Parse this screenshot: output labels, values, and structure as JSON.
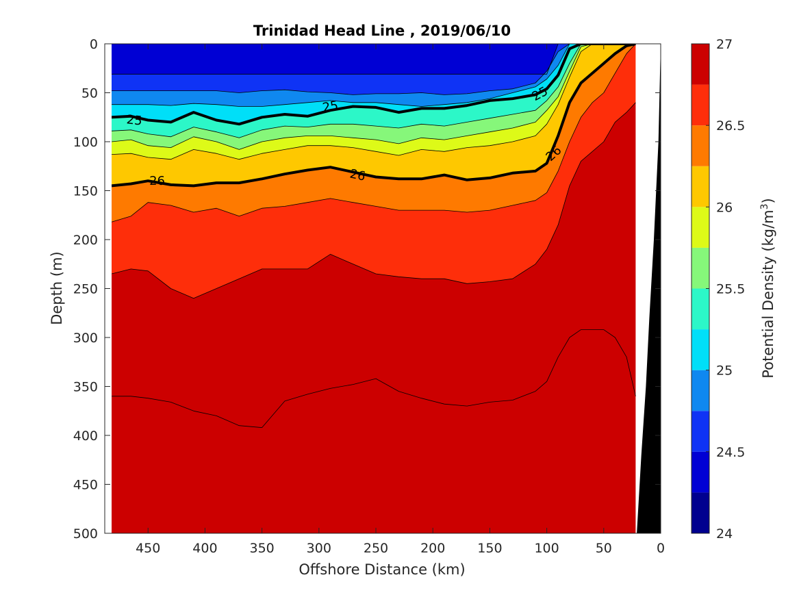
{
  "chart_data": {
    "type": "heatmap",
    "subtype": "filled-contour-section",
    "title": "Trinidad Head Line , 2019/06/10",
    "xlabel": "Offshore Distance (km)",
    "ylabel": "Depth (m)",
    "x_reversed": true,
    "y_reversed": true,
    "xlim": [
      0,
      488
    ],
    "ylim": [
      0,
      500
    ],
    "xticks": [
      450,
      400,
      350,
      300,
      250,
      200,
      150,
      100,
      50,
      0
    ],
    "yticks": [
      0,
      50,
      100,
      150,
      200,
      250,
      300,
      350,
      400,
      450,
      500
    ],
    "colorbar": {
      "label": "Potential Density (kg/m",
      "label_sup": "3",
      "label_close": ")",
      "range": [
        24,
        27
      ],
      "ticks": [
        24,
        24.5,
        25,
        25.5,
        26,
        26.5,
        27
      ],
      "levels": [
        24,
        24.25,
        24.5,
        24.75,
        25,
        25.25,
        25.5,
        25.75,
        26,
        26.25,
        26.5,
        26.75,
        27
      ],
      "colors": [
        "#00008F",
        "#0000D4",
        "#0F33F5",
        "#0F88F0",
        "#00DFF8",
        "#2CF7C8",
        "#86F77A",
        "#DDFA18",
        "#FEC800",
        "#FE7A00",
        "#FE2E0A",
        "#CC0000"
      ]
    },
    "data_region_x_max": 482,
    "bottom_color": "#000000",
    "bathymetry": [
      [
        0,
        0
      ],
      [
        2,
        100
      ],
      [
        6,
        200
      ],
      [
        10,
        280
      ],
      [
        13,
        350
      ],
      [
        17,
        420
      ],
      [
        21,
        500
      ]
    ],
    "isolines_km": [
      482,
      465,
      450,
      430,
      410,
      390,
      370,
      350,
      330,
      310,
      290,
      270,
      250,
      230,
      210,
      190,
      170,
      150,
      130,
      110,
      100,
      90,
      80,
      70,
      60,
      50,
      40,
      30,
      22
    ],
    "isopycnals": [
      {
        "level": 24.25,
        "depths": [
          31,
          31,
          31,
          31,
          31,
          31,
          31,
          31,
          31,
          31,
          31,
          31,
          31,
          31,
          31,
          31,
          31,
          31,
          31,
          31,
          31,
          0,
          0,
          0,
          0,
          0,
          0,
          0,
          0
        ]
      },
      {
        "level": 24.5,
        "depths": [
          48,
          48,
          48,
          48,
          48,
          48,
          50,
          48,
          47,
          49,
          50,
          52,
          51,
          51,
          50,
          52,
          51,
          48,
          46,
          40,
          28,
          8,
          0,
          0,
          0,
          0,
          0,
          0,
          0
        ]
      },
      {
        "level": 24.75,
        "depths": [
          62,
          62,
          62,
          63,
          61,
          62,
          64,
          64,
          62,
          60,
          58,
          60,
          60,
          62,
          64,
          62,
          60,
          56,
          50,
          44,
          36,
          22,
          0,
          0,
          0,
          0,
          0,
          0,
          0
        ]
      },
      {
        "level": 25.0,
        "depths": [
          75,
          74,
          78,
          80,
          70,
          78,
          82,
          75,
          72,
          74,
          68,
          64,
          65,
          70,
          66,
          66,
          63,
          58,
          56,
          52,
          46,
          32,
          5,
          0,
          0,
          0,
          0,
          0,
          0
        ]
      },
      {
        "level": 25.25,
        "depths": [
          89,
          88,
          92,
          95,
          85,
          90,
          96,
          88,
          84,
          85,
          82,
          82,
          84,
          86,
          82,
          84,
          80,
          76,
          72,
          68,
          58,
          44,
          20,
          0,
          0,
          0,
          0,
          0,
          0
        ]
      },
      {
        "level": 25.5,
        "depths": [
          100,
          98,
          104,
          106,
          95,
          100,
          108,
          100,
          96,
          94,
          94,
          96,
          98,
          102,
          96,
          98,
          94,
          90,
          86,
          80,
          68,
          54,
          28,
          3,
          0,
          0,
          0,
          0,
          0
        ]
      },
      {
        "level": 25.75,
        "depths": [
          113,
          112,
          116,
          118,
          108,
          112,
          118,
          112,
          108,
          104,
          104,
          106,
          110,
          114,
          108,
          110,
          106,
          104,
          100,
          94,
          82,
          62,
          34,
          8,
          0,
          0,
          0,
          0,
          0
        ]
      },
      {
        "level": 26.0,
        "depths": [
          145,
          143,
          140,
          144,
          145,
          142,
          142,
          138,
          133,
          129,
          126,
          131,
          136,
          138,
          138,
          134,
          139,
          137,
          132,
          130,
          122,
          94,
          60,
          40,
          30,
          20,
          10,
          2,
          0
        ]
      },
      {
        "level": 26.25,
        "depths": [
          182,
          176,
          162,
          165,
          172,
          168,
          176,
          168,
          166,
          162,
          158,
          162,
          166,
          170,
          170,
          170,
          172,
          170,
          165,
          160,
          152,
          130,
          100,
          75,
          60,
          50,
          30,
          10,
          0
        ]
      },
      {
        "level": 26.5,
        "depths": [
          235,
          230,
          232,
          250,
          260,
          250,
          240,
          230,
          230,
          230,
          215,
          225,
          235,
          238,
          240,
          240,
          245,
          243,
          240,
          225,
          210,
          185,
          145,
          120,
          110,
          100,
          80,
          70,
          60
        ]
      },
      {
        "level": 26.75,
        "depths": [
          360,
          360,
          362,
          366,
          375,
          380,
          390,
          392,
          365,
          358,
          352,
          348,
          342,
          355,
          362,
          368,
          370,
          366,
          364,
          355,
          345,
          320,
          300,
          292,
          292,
          292,
          300,
          320,
          360
        ]
      }
    ],
    "contour_labels": [
      {
        "text": "25",
        "x": 462,
        "y": 78,
        "angle": 6
      },
      {
        "text": "25",
        "x": 290,
        "y": 64,
        "angle": -10
      },
      {
        "text": "25",
        "x": 106,
        "y": 51,
        "angle": -28
      },
      {
        "text": "26",
        "x": 442,
        "y": 140,
        "angle": 0
      },
      {
        "text": "26",
        "x": 266,
        "y": 134,
        "angle": 12
      },
      {
        "text": "26",
        "x": 94,
        "y": 112,
        "angle": -42
      }
    ]
  }
}
